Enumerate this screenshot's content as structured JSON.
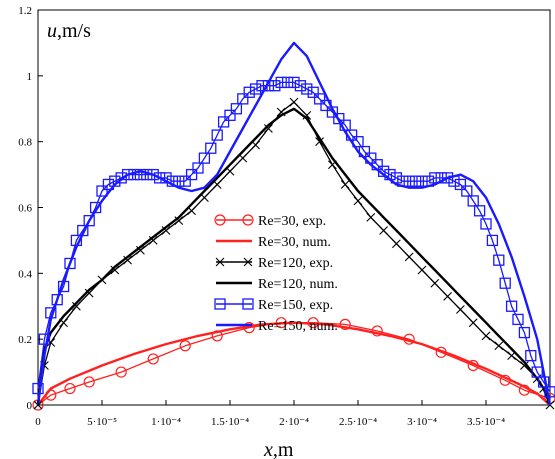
{
  "chart_data": {
    "type": "line",
    "xlabel": {
      "var": "x",
      "unit": ",m"
    },
    "ylabel": {
      "var": "u",
      "unit": ",m/s"
    },
    "xlim": [
      0,
      0.0004
    ],
    "ylim": [
      0,
      1.2
    ],
    "x_ticks": [
      {
        "v": 0,
        "label": "0"
      },
      {
        "v": 5e-05,
        "label": "5·10⁻⁵"
      },
      {
        "v": 0.0001,
        "label": "1·10⁻⁴"
      },
      {
        "v": 0.00015,
        "label": "1.5·10⁻⁴"
      },
      {
        "v": 0.0002,
        "label": "2·10⁻⁴"
      },
      {
        "v": 0.00025,
        "label": "2.5·10⁻⁴"
      },
      {
        "v": 0.0003,
        "label": "3·10⁻⁴"
      },
      {
        "v": 0.00035,
        "label": "3.5·10⁻⁴"
      }
    ],
    "y_ticks": [
      {
        "v": 0,
        "label": "0"
      },
      {
        "v": 0.2,
        "label": "0.2"
      },
      {
        "v": 0.4,
        "label": "0.4"
      },
      {
        "v": 0.6,
        "label": "0.6"
      },
      {
        "v": 0.8,
        "label": "0.8"
      },
      {
        "v": 1.0,
        "label": "1"
      },
      {
        "v": 1.2,
        "label": "1.2"
      }
    ],
    "series": [
      {
        "name": "Re=30, exp.",
        "color": "#ff2020",
        "marker": "circle",
        "line": true,
        "x": [
          0,
          1e-05,
          2.5e-05,
          4e-05,
          6.5e-05,
          9e-05,
          0.000115,
          0.00014,
          0.000165,
          0.00019,
          0.000215,
          0.00024,
          0.000265,
          0.00029,
          0.000315,
          0.00034,
          0.000365,
          0.00038,
          0.0004
        ],
        "y": [
          0,
          0.03,
          0.05,
          0.07,
          0.1,
          0.14,
          0.18,
          0.21,
          0.235,
          0.25,
          0.25,
          0.245,
          0.225,
          0.2,
          0.16,
          0.12,
          0.075,
          0.045,
          0.02
        ]
      },
      {
        "name": "Re=30, num.",
        "color": "#ff2020",
        "marker": "none",
        "line": true,
        "x": [
          0,
          1e-05,
          2.5e-05,
          5e-05,
          7.5e-05,
          0.0001,
          0.000125,
          0.00015,
          0.000175,
          0.0002,
          0.000225,
          0.00025,
          0.000275,
          0.0003,
          0.000325,
          0.00035,
          0.000375,
          0.00039,
          0.0004
        ],
        "y": [
          0,
          0.05,
          0.08,
          0.12,
          0.155,
          0.185,
          0.21,
          0.23,
          0.245,
          0.25,
          0.245,
          0.23,
          0.21,
          0.185,
          0.15,
          0.11,
          0.065,
          0.035,
          0
        ]
      },
      {
        "name": "Re=120, exp.",
        "color": "#000000",
        "marker": "x",
        "line": true,
        "x": [
          0,
          5e-06,
          1e-05,
          2e-05,
          3e-05,
          4e-05,
          5e-05,
          6e-05,
          7e-05,
          8e-05,
          9e-05,
          0.0001,
          0.00011,
          0.00012,
          0.00013,
          0.00014,
          0.00015,
          0.00016,
          0.00017,
          0.00018,
          0.00019,
          0.0002,
          0.00021,
          0.00022,
          0.00023,
          0.00024,
          0.00025,
          0.00026,
          0.00027,
          0.00028,
          0.00029,
          0.0003,
          0.00031,
          0.00032,
          0.00033,
          0.00034,
          0.00035,
          0.00036,
          0.00037,
          0.00038,
          0.00039,
          0.000395,
          0.0004
        ],
        "y": [
          0,
          0.12,
          0.19,
          0.25,
          0.3,
          0.34,
          0.38,
          0.41,
          0.44,
          0.47,
          0.5,
          0.53,
          0.56,
          0.59,
          0.63,
          0.67,
          0.71,
          0.75,
          0.79,
          0.84,
          0.89,
          0.92,
          0.88,
          0.8,
          0.73,
          0.67,
          0.62,
          0.57,
          0.53,
          0.49,
          0.45,
          0.41,
          0.37,
          0.33,
          0.29,
          0.25,
          0.21,
          0.18,
          0.15,
          0.12,
          0.08,
          0.05,
          0
        ]
      },
      {
        "name": "Re=120, num.",
        "color": "#000000",
        "marker": "none",
        "line": true,
        "x": [
          0,
          5e-06,
          1e-05,
          2e-05,
          3e-05,
          4e-05,
          5e-05,
          6e-05,
          7e-05,
          8e-05,
          9e-05,
          0.0001,
          0.00011,
          0.00012,
          0.00013,
          0.00014,
          0.00015,
          0.00016,
          0.00017,
          0.00018,
          0.00019,
          0.0002,
          0.00021,
          0.00022,
          0.00023,
          0.00024,
          0.00025,
          0.00026,
          0.00027,
          0.00028,
          0.00029,
          0.0003,
          0.00031,
          0.00032,
          0.00033,
          0.00034,
          0.00035,
          0.00036,
          0.00037,
          0.00038,
          0.00039,
          0.000395,
          0.0004
        ],
        "y": [
          0,
          0.17,
          0.22,
          0.27,
          0.31,
          0.35,
          0.38,
          0.42,
          0.45,
          0.48,
          0.51,
          0.54,
          0.57,
          0.61,
          0.65,
          0.69,
          0.73,
          0.77,
          0.81,
          0.85,
          0.88,
          0.9,
          0.87,
          0.81,
          0.75,
          0.7,
          0.65,
          0.61,
          0.57,
          0.53,
          0.49,
          0.45,
          0.41,
          0.37,
          0.33,
          0.29,
          0.25,
          0.21,
          0.17,
          0.13,
          0.08,
          0.05,
          0
        ]
      },
      {
        "name": "Re=150, exp.",
        "color": "#1a1aff",
        "marker": "square",
        "line": true,
        "x": [
          0,
          5e-06,
          1e-05,
          1.5e-05,
          2e-05,
          2.5e-05,
          3e-05,
          3.5e-05,
          4e-05,
          4.5e-05,
          5e-05,
          5.5e-05,
          6e-05,
          6.5e-05,
          7e-05,
          7.5e-05,
          8e-05,
          8.5e-05,
          9e-05,
          9.5e-05,
          0.0001,
          0.000105,
          0.00011,
          0.000115,
          0.00012,
          0.000125,
          0.00013,
          0.000135,
          0.00014,
          0.000145,
          0.00015,
          0.000155,
          0.00016,
          0.000165,
          0.00017,
          0.000175,
          0.00018,
          0.000185,
          0.00019,
          0.000195,
          0.0002,
          0.000205,
          0.00021,
          0.000215,
          0.00022,
          0.000225,
          0.00023,
          0.000235,
          0.00024,
          0.000245,
          0.00025,
          0.000255,
          0.00026,
          0.000265,
          0.00027,
          0.000275,
          0.00028,
          0.000285,
          0.00029,
          0.000295,
          0.0003,
          0.000305,
          0.00031,
          0.000315,
          0.00032,
          0.000325,
          0.00033,
          0.000335,
          0.00034,
          0.000345,
          0.00035,
          0.000355,
          0.00036,
          0.000365,
          0.00037,
          0.000375,
          0.00038,
          0.000385,
          0.00039,
          0.000395,
          0.0004
        ],
        "y": [
          0.05,
          0.2,
          0.28,
          0.32,
          0.36,
          0.43,
          0.5,
          0.53,
          0.56,
          0.6,
          0.65,
          0.67,
          0.68,
          0.69,
          0.7,
          0.7,
          0.7,
          0.7,
          0.7,
          0.69,
          0.69,
          0.68,
          0.68,
          0.68,
          0.7,
          0.72,
          0.75,
          0.78,
          0.82,
          0.86,
          0.88,
          0.9,
          0.93,
          0.95,
          0.96,
          0.97,
          0.97,
          0.97,
          0.98,
          0.98,
          0.98,
          0.97,
          0.96,
          0.95,
          0.93,
          0.91,
          0.89,
          0.87,
          0.85,
          0.82,
          0.8,
          0.77,
          0.75,
          0.73,
          0.71,
          0.7,
          0.69,
          0.68,
          0.68,
          0.68,
          0.68,
          0.68,
          0.69,
          0.69,
          0.69,
          0.68,
          0.67,
          0.65,
          0.62,
          0.59,
          0.55,
          0.5,
          0.44,
          0.37,
          0.3,
          0.26,
          0.22,
          0.15,
          0.1,
          0.07,
          0.04
        ]
      },
      {
        "name": "Re=150, num.",
        "color": "#1a1aff",
        "marker": "none",
        "line": true,
        "x": [
          0,
          5e-06,
          1e-05,
          2e-05,
          3e-05,
          4e-05,
          5e-05,
          6e-05,
          7e-05,
          8e-05,
          9e-05,
          0.0001,
          0.00011,
          0.00012,
          0.00013,
          0.00014,
          0.00015,
          0.00016,
          0.00017,
          0.00018,
          0.00019,
          0.0002,
          0.00021,
          0.00022,
          0.00023,
          0.00024,
          0.00025,
          0.00026,
          0.00027,
          0.00028,
          0.00029,
          0.0003,
          0.00031,
          0.00032,
          0.00033,
          0.00034,
          0.00035,
          0.00036,
          0.00037,
          0.00038,
          0.00039,
          0.000395,
          0.0004
        ],
        "y": [
          0,
          0.15,
          0.26,
          0.38,
          0.48,
          0.56,
          0.62,
          0.67,
          0.7,
          0.71,
          0.7,
          0.68,
          0.66,
          0.65,
          0.66,
          0.7,
          0.77,
          0.84,
          0.91,
          0.98,
          1.05,
          1.1,
          1.06,
          0.98,
          0.9,
          0.83,
          0.77,
          0.73,
          0.7,
          0.67,
          0.66,
          0.66,
          0.67,
          0.69,
          0.7,
          0.68,
          0.63,
          0.55,
          0.45,
          0.33,
          0.2,
          0.1,
          0
        ]
      }
    ],
    "legend": {
      "position": "center",
      "entries": [
        "Re=30, exp.",
        "Re=30, num.",
        "Re=120, exp.",
        "Re=120, num.",
        "Re=150, exp.",
        "Re=150, num."
      ]
    },
    "grid": false
  }
}
